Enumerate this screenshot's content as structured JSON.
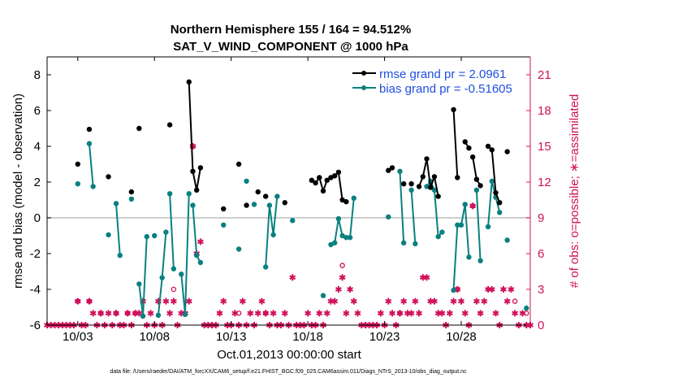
{
  "chart_data": {
    "type": "line",
    "title": "Northern Hemisphere 155 / 164 = 94.512%",
    "subtitle": "SAT_V_WIND_COMPONENT @ 1000 hPa",
    "xlabel": "Oct.01,2013 00:00:00 start",
    "ylabel": "rmse and bias (model - observation)",
    "ylabel_right": "# of obs: o=possible; ∗=assimilated",
    "footer": "data file: /Users/raeder/DAI/ATM_forcXX/CAM6_setup/f.e21.FHIST_BGC.f09_025.CAM6assim.011/Diags_NTrS_2013-10/obs_diag_output.nc",
    "xlim": [
      1,
      32.5
    ],
    "ylim": [
      -6,
      9
    ],
    "ylim_right": [
      0,
      22.5
    ],
    "x_ticks": [
      3,
      8,
      13,
      18,
      23,
      28
    ],
    "x_tick_labels": [
      "10/03",
      "10/08",
      "10/13",
      "10/18",
      "10/23",
      "10/28"
    ],
    "y_ticks": [
      -6,
      -4,
      -2,
      0,
      2,
      4,
      6,
      8
    ],
    "y_tick_labels": [
      "-6",
      "-4",
      "-2",
      "0",
      "2",
      "4",
      "6",
      "8"
    ],
    "y_right_ticks": [
      0,
      3,
      6,
      9,
      12,
      15,
      18,
      21
    ],
    "y_right_tick_labels": [
      "0",
      "3",
      "6",
      "9",
      "12",
      "15",
      "18",
      "21"
    ],
    "colors": {
      "rmse": "#000000",
      "bias": "#0a8080",
      "obs": "#d0105a",
      "zero_line": "#bdbdbd",
      "legend_text": "#1f4fe0"
    },
    "legend": {
      "placement": "top-right",
      "entries": [
        "rmse grand pr = 2.0961",
        "bias grand pr = -0.51605"
      ]
    },
    "series": [
      {
        "name": "rmse",
        "segments": [
          [
            [
              3.0,
              3.0
            ]
          ],
          [
            [
              3.75,
              4.95
            ]
          ],
          [
            [
              5.0,
              2.3
            ]
          ],
          [
            [
              6.5,
              1.45
            ]
          ],
          [
            [
              7.0,
              5.0
            ]
          ],
          [
            [
              9.0,
              5.2
            ]
          ],
          [
            [
              10.25,
              7.6
            ],
            [
              10.5,
              2.6
            ],
            [
              10.75,
              1.55
            ],
            [
              11.0,
              2.8
            ]
          ],
          [
            [
              12.5,
              0.5
            ]
          ],
          [
            [
              13.5,
              3.0
            ]
          ],
          [
            [
              14.0,
              0.7
            ]
          ],
          [
            [
              14.75,
              1.45
            ]
          ],
          [
            [
              15.25,
              1.2
            ]
          ],
          [
            [
              16.5,
              0.85
            ]
          ],
          [
            [
              18.25,
              2.1
            ],
            [
              18.5,
              1.95
            ],
            [
              18.75,
              2.25
            ],
            [
              19.0,
              1.5
            ],
            [
              19.25,
              2.1
            ],
            [
              19.5,
              2.25
            ],
            [
              19.75,
              2.35
            ],
            [
              20.0,
              2.55
            ],
            [
              20.25,
              1.0
            ],
            [
              20.5,
              0.9
            ]
          ],
          [
            [
              23.25,
              2.65
            ],
            [
              23.5,
              2.8
            ]
          ],
          [
            [
              24.25,
              1.9
            ]
          ],
          [
            [
              24.75,
              1.9
            ]
          ],
          [
            [
              25.25,
              1.75
            ],
            [
              25.5,
              2.3
            ],
            [
              25.75,
              3.3
            ],
            [
              26.0,
              1.7
            ],
            [
              26.25,
              2.3
            ],
            [
              26.5,
              1.2
            ]
          ],
          [
            [
              27.5,
              6.05
            ],
            [
              27.75,
              2.25
            ]
          ],
          [
            [
              28.25,
              4.25
            ],
            [
              28.5,
              3.9
            ]
          ],
          [
            [
              28.75,
              3.4
            ],
            [
              29.0,
              2.15
            ],
            [
              29.25,
              1.8
            ]
          ],
          [
            [
              29.75,
              4.0
            ],
            [
              30.0,
              3.8
            ],
            [
              30.25,
              1.4
            ],
            [
              30.5,
              0.85
            ]
          ],
          [
            [
              31.0,
              3.7
            ]
          ]
        ]
      },
      {
        "name": "bias",
        "segments": [
          [
            [
              3.0,
              1.9
            ]
          ],
          [
            [
              3.75,
              4.15
            ],
            [
              4.0,
              1.75
            ]
          ],
          [
            [
              5.0,
              -0.95
            ]
          ],
          [
            [
              5.5,
              0.8
            ],
            [
              5.75,
              -2.1
            ]
          ],
          [
            [
              6.5,
              1.05
            ]
          ],
          [
            [
              7.0,
              -3.7
            ],
            [
              7.25,
              -5.5
            ],
            [
              7.5,
              -1.05
            ]
          ],
          [
            [
              8.0,
              -1.0
            ]
          ],
          [
            [
              8.25,
              -5.45
            ],
            [
              8.5,
              -3.35
            ],
            [
              8.75,
              -0.8
            ]
          ],
          [
            [
              9.0,
              1.35
            ],
            [
              9.25,
              -2.85
            ]
          ],
          [
            [
              9.75,
              -3.15
            ],
            [
              10.0,
              -5.4
            ],
            [
              10.25,
              1.35
            ]
          ],
          [
            [
              10.5,
              0.7
            ],
            [
              10.75,
              -2.1
            ],
            [
              11.0,
              -2.5
            ]
          ],
          [
            [
              12.5,
              -0.4
            ]
          ],
          [
            [
              13.5,
              -1.75
            ]
          ],
          [
            [
              14.0,
              2.05
            ]
          ],
          [
            [
              14.5,
              0.75
            ]
          ],
          [
            [
              15.25,
              -2.75
            ],
            [
              15.5,
              0.7
            ],
            [
              15.75,
              -0.95
            ],
            [
              16.0,
              1.2
            ]
          ],
          [
            [
              17.0,
              -0.15
            ]
          ],
          [
            [
              19.0,
              -4.35
            ]
          ],
          [
            [
              19.5,
              -1.5
            ],
            [
              19.75,
              -1.4
            ],
            [
              20.0,
              -0.05
            ],
            [
              20.25,
              -1.0
            ],
            [
              20.5,
              -1.1
            ],
            [
              20.75,
              -1.1
            ],
            [
              21.0,
              1.1
            ]
          ],
          [
            [
              23.25,
              0.05
            ]
          ],
          [
            [
              24.0,
              2.6
            ],
            [
              24.25,
              -1.4
            ]
          ],
          [
            [
              24.75,
              1.55
            ],
            [
              25.0,
              -1.45
            ]
          ],
          [
            [
              25.75,
              1.75
            ],
            [
              26.0,
              2.05
            ],
            [
              26.25,
              1.55
            ],
            [
              26.5,
              -1.05
            ],
            [
              26.75,
              -0.8
            ]
          ],
          [
            [
              27.5,
              -4.05
            ],
            [
              27.75,
              -0.4
            ],
            [
              28.0,
              -0.4
            ],
            [
              28.25,
              0.75
            ],
            [
              28.5,
              -2.2
            ]
          ],
          [
            [
              29.0,
              1.55
            ],
            [
              29.25,
              -2.4
            ]
          ],
          [
            [
              29.75,
              -0.5
            ],
            [
              30.0,
              2.05
            ],
            [
              30.25,
              1.15
            ],
            [
              30.5,
              0.3
            ]
          ],
          [
            [
              31.0,
              -1.25
            ]
          ],
          [
            [
              32.25,
              -5.05
            ]
          ]
        ]
      },
      {
        "name": "obs_assimilated",
        "axis": "right",
        "points": [
          [
            1.0,
            0
          ],
          [
            1.25,
            0
          ],
          [
            1.5,
            0
          ],
          [
            1.75,
            0
          ],
          [
            2.0,
            0
          ],
          [
            2.25,
            0
          ],
          [
            2.5,
            0
          ],
          [
            2.75,
            0
          ],
          [
            3.0,
            2
          ],
          [
            3.25,
            0
          ],
          [
            3.5,
            0
          ],
          [
            3.75,
            2
          ],
          [
            4.0,
            1
          ],
          [
            4.25,
            0
          ],
          [
            4.5,
            1
          ],
          [
            4.75,
            0
          ],
          [
            5.0,
            1
          ],
          [
            5.25,
            0
          ],
          [
            5.5,
            1
          ],
          [
            5.75,
            0
          ],
          [
            6.0,
            0
          ],
          [
            6.25,
            1
          ],
          [
            6.5,
            0
          ],
          [
            6.75,
            1
          ],
          [
            7.0,
            1
          ],
          [
            7.25,
            2
          ],
          [
            7.5,
            0
          ],
          [
            7.75,
            1
          ],
          [
            8.0,
            0
          ],
          [
            8.25,
            2
          ],
          [
            8.5,
            0
          ],
          [
            8.75,
            2
          ],
          [
            9.0,
            1
          ],
          [
            9.25,
            2
          ],
          [
            9.5,
            0
          ],
          [
            9.75,
            1
          ],
          [
            10.0,
            1
          ],
          [
            10.25,
            2
          ],
          [
            10.5,
            15
          ],
          [
            10.75,
            6
          ],
          [
            11.0,
            7
          ],
          [
            11.25,
            0
          ],
          [
            11.5,
            0
          ],
          [
            11.75,
            0
          ],
          [
            12.0,
            0
          ],
          [
            12.25,
            1
          ],
          [
            12.5,
            2
          ],
          [
            12.75,
            0
          ],
          [
            13.0,
            0
          ],
          [
            13.25,
            1
          ],
          [
            13.5,
            0
          ],
          [
            13.75,
            2
          ],
          [
            14.0,
            0
          ],
          [
            14.25,
            1
          ],
          [
            14.5,
            0
          ],
          [
            14.75,
            1
          ],
          [
            15.0,
            2
          ],
          [
            15.25,
            1
          ],
          [
            15.5,
            0
          ],
          [
            15.75,
            1
          ],
          [
            16.0,
            0
          ],
          [
            16.25,
            0
          ],
          [
            16.5,
            1
          ],
          [
            16.75,
            0
          ],
          [
            17.0,
            4
          ],
          [
            17.25,
            0
          ],
          [
            17.5,
            0
          ],
          [
            17.75,
            0
          ],
          [
            18.0,
            1
          ],
          [
            18.25,
            0
          ],
          [
            18.5,
            0
          ],
          [
            18.75,
            1
          ],
          [
            19.0,
            0
          ],
          [
            19.25,
            1
          ],
          [
            19.5,
            2
          ],
          [
            19.75,
            2
          ],
          [
            20.0,
            3
          ],
          [
            20.25,
            4
          ],
          [
            20.5,
            1
          ],
          [
            20.75,
            3
          ],
          [
            21.0,
            2
          ],
          [
            21.25,
            1
          ],
          [
            21.5,
            0
          ],
          [
            21.75,
            0
          ],
          [
            22.0,
            0
          ],
          [
            22.25,
            0
          ],
          [
            22.5,
            0
          ],
          [
            22.75,
            1
          ],
          [
            23.0,
            0
          ],
          [
            23.25,
            2
          ],
          [
            23.5,
            1
          ],
          [
            23.75,
            0
          ],
          [
            24.0,
            1
          ],
          [
            24.25,
            2
          ],
          [
            24.5,
            1
          ],
          [
            24.75,
            1
          ],
          [
            25.0,
            2
          ],
          [
            25.25,
            1
          ],
          [
            25.5,
            4
          ],
          [
            25.75,
            4
          ],
          [
            26.0,
            2
          ],
          [
            26.25,
            2
          ],
          [
            26.5,
            1
          ],
          [
            26.75,
            1
          ],
          [
            27.0,
            0
          ],
          [
            27.25,
            1
          ],
          [
            27.5,
            2
          ],
          [
            27.75,
            3
          ],
          [
            28.0,
            2
          ],
          [
            28.25,
            1
          ],
          [
            28.5,
            0
          ],
          [
            28.75,
            10
          ],
          [
            29.0,
            2
          ],
          [
            29.25,
            1
          ],
          [
            29.5,
            2
          ],
          [
            29.75,
            3
          ],
          [
            30.0,
            3
          ],
          [
            30.25,
            1
          ],
          [
            30.5,
            0
          ],
          [
            30.75,
            3
          ],
          [
            31.0,
            2
          ],
          [
            31.25,
            3
          ],
          [
            31.5,
            1
          ],
          [
            31.75,
            0
          ],
          [
            32.0,
            1
          ],
          [
            32.25,
            0
          ],
          [
            32.5,
            0
          ]
        ]
      },
      {
        "name": "obs_possible",
        "axis": "right",
        "points": [
          [
            3.0,
            2
          ],
          [
            3.75,
            2
          ],
          [
            4.5,
            1
          ],
          [
            5.5,
            1
          ],
          [
            6.25,
            1
          ],
          [
            6.75,
            1
          ],
          [
            9.25,
            3
          ],
          [
            10.5,
            15
          ],
          [
            13.5,
            1
          ],
          [
            15.25,
            1
          ],
          [
            20.25,
            5
          ],
          [
            24.0,
            1
          ],
          [
            27.75,
            3
          ],
          [
            28.75,
            10
          ],
          [
            31.5,
            2
          ],
          [
            32.25,
            1
          ]
        ]
      }
    ]
  }
}
